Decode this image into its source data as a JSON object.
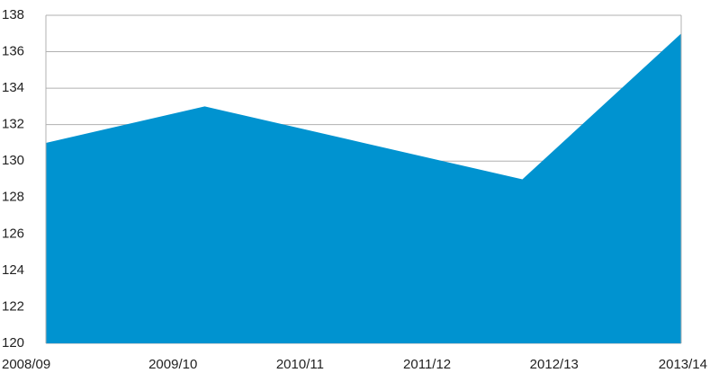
{
  "chart_data": {
    "type": "area",
    "x": [
      0,
      1.25,
      2.5,
      3.75,
      5
    ],
    "values": [
      131,
      133,
      131,
      129,
      137
    ],
    "color": "#0093d0",
    "xlim": [
      0,
      5
    ],
    "xticks": [
      {
        "value": 0,
        "label": "2008/09"
      },
      {
        "value": 1,
        "label": "2009/10"
      },
      {
        "value": 2,
        "label": "2010/11"
      },
      {
        "value": 3,
        "label": "2011/12"
      },
      {
        "value": 4,
        "label": "2012/13"
      },
      {
        "value": 5,
        "label": "2013/14"
      }
    ],
    "ylim": [
      120,
      138
    ],
    "yticks": [
      120,
      122,
      124,
      126,
      128,
      130,
      132,
      134,
      136,
      138
    ],
    "grid": true
  }
}
